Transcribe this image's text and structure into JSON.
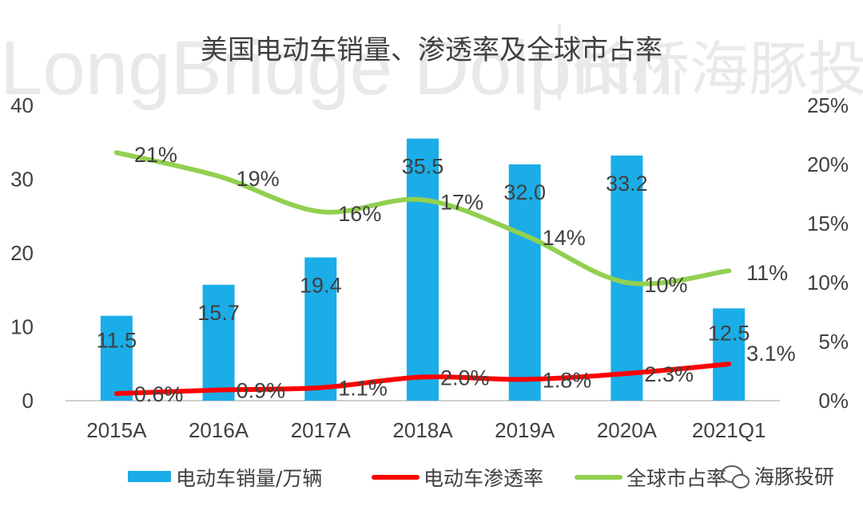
{
  "chart_data": {
    "type": "bar",
    "title": "美国电动车销量、渗透率及全球市占率",
    "categories": [
      "2015A",
      "2016A",
      "2017A",
      "2018A",
      "2019A",
      "2020A",
      "2021Q1"
    ],
    "series": [
      {
        "name": "电动车销量/万辆",
        "kind": "bar",
        "axis": "left",
        "color": "#1aade8",
        "values": [
          11.5,
          15.7,
          19.4,
          35.5,
          32.0,
          33.2,
          12.5
        ],
        "labels": [
          "11.5",
          "15.7",
          "19.4",
          "35.5",
          "32.0",
          "33.2",
          "12.5"
        ]
      },
      {
        "name": "电动车渗透率",
        "kind": "line",
        "axis": "right",
        "color": "#ff0000",
        "values": [
          0.6,
          0.9,
          1.1,
          2.0,
          1.8,
          2.3,
          3.1
        ],
        "labels": [
          "0.6%",
          "0.9%",
          "1.1%",
          "2.0%",
          "1.8%",
          "2.3%",
          "3.1%"
        ]
      },
      {
        "name": "全球市占率",
        "kind": "line",
        "axis": "right",
        "color": "#92d050",
        "values": [
          21,
          19,
          16,
          17,
          14,
          10,
          11
        ],
        "labels": [
          "21%",
          "19%",
          "16%",
          "17%",
          "14%",
          "10%",
          "11%"
        ]
      }
    ],
    "y_left": {
      "ylim": [
        0,
        40
      ],
      "ticks": [
        "0",
        "10",
        "20",
        "30",
        "40"
      ]
    },
    "y_right": {
      "ylim": [
        0,
        25
      ],
      "ticks": [
        "0%",
        "5%",
        "10%",
        "15%",
        "20%",
        "25%"
      ]
    },
    "legend_position": "bottom"
  },
  "watermark": {
    "text_en": "LongBridge Dolphin",
    "text_cn": "长桥海豚投研",
    "brand": "海豚投研"
  }
}
